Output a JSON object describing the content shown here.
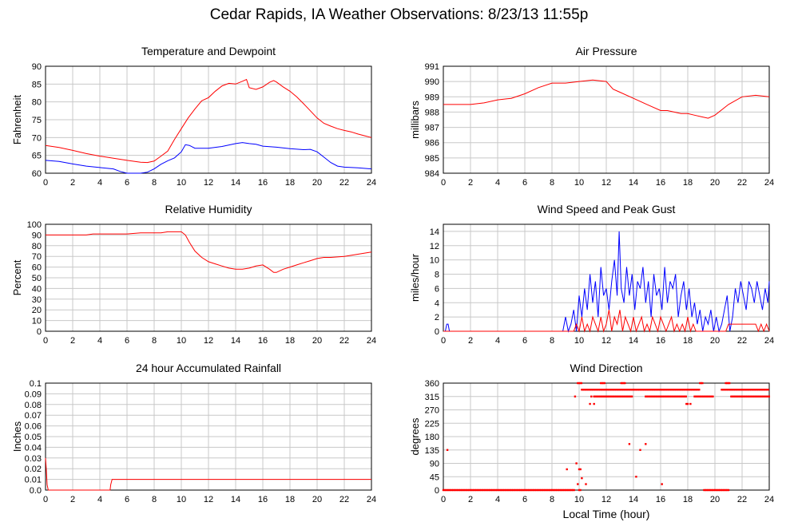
{
  "page": {
    "title": "Cedar Rapids, IA Weather Observations: 8/23/13 11:55p",
    "bottom_xlabel": "Local Time (hour)"
  },
  "colors": {
    "red": "#ff0000",
    "blue": "#0000ff",
    "grid": "#c8c8c8",
    "axis": "#000000"
  },
  "chart_data": [
    {
      "id": "temp",
      "type": "line",
      "title": "Temperature and Dewpoint",
      "ylabel": "Fahrenheit",
      "xlabel": "",
      "xlim": [
        0,
        24
      ],
      "ylim": [
        60,
        90
      ],
      "xticks": [
        0,
        2,
        4,
        6,
        8,
        10,
        12,
        14,
        16,
        18,
        20,
        22,
        24
      ],
      "yticks": [
        60,
        65,
        70,
        75,
        80,
        85,
        90
      ],
      "series": [
        {
          "color": "#ff0000",
          "x": [
            0,
            1,
            2,
            3,
            4,
            5,
            6,
            7,
            7.5,
            8,
            8.5,
            9,
            9.5,
            10,
            10.5,
            11,
            11.5,
            12,
            12.5,
            13,
            13.5,
            14,
            14.5,
            14.8,
            15,
            15.5,
            16,
            16.5,
            16.8,
            17,
            17.5,
            18,
            18.5,
            19,
            19.5,
            20,
            20.5,
            21,
            21.5,
            22,
            22.5,
            23,
            23.5,
            24
          ],
          "y": [
            67.8,
            67.2,
            66.4,
            65.5,
            64.8,
            64.2,
            63.6,
            63.1,
            63.0,
            63.4,
            64.8,
            66.2,
            69.5,
            72.5,
            75.5,
            78.0,
            80.3,
            81.2,
            83.0,
            84.5,
            85.2,
            85.0,
            85.8,
            86.3,
            84.0,
            83.5,
            84.2,
            85.5,
            86.0,
            85.6,
            84.2,
            83.0,
            81.4,
            79.5,
            77.5,
            75.5,
            74.0,
            73.2,
            72.5,
            72.0,
            71.6,
            71.0,
            70.5,
            70.0
          ]
        },
        {
          "color": "#0000ff",
          "x": [
            0,
            1,
            2,
            3,
            4,
            5,
            5.5,
            6,
            7,
            7.5,
            8,
            8.5,
            9,
            9.5,
            10,
            10.3,
            10.6,
            11,
            12,
            13,
            14,
            14.5,
            15,
            15.5,
            16,
            17,
            18,
            19,
            19.5,
            20,
            20.5,
            21,
            21.5,
            22,
            23,
            24
          ],
          "y": [
            63.6,
            63.3,
            62.6,
            62.0,
            61.6,
            61.2,
            60.5,
            60.0,
            60.0,
            60.3,
            61.2,
            62.5,
            63.5,
            64.3,
            66.0,
            68.0,
            67.8,
            67.0,
            67.0,
            67.5,
            68.3,
            68.6,
            68.3,
            68.1,
            67.6,
            67.3,
            66.9,
            66.6,
            66.7,
            66.0,
            64.5,
            63.0,
            62.0,
            61.7,
            61.5,
            61.2
          ]
        }
      ]
    },
    {
      "id": "pres",
      "type": "line",
      "title": "Air Pressure",
      "ylabel": "millibars",
      "xlabel": "",
      "xlim": [
        0,
        24
      ],
      "ylim": [
        984,
        991
      ],
      "xticks": [
        0,
        2,
        4,
        6,
        8,
        10,
        12,
        14,
        16,
        18,
        20,
        22,
        24
      ],
      "yticks": [
        984,
        985,
        986,
        987,
        988,
        989,
        990,
        991
      ],
      "series": [
        {
          "color": "#ff0000",
          "x": [
            0,
            1,
            2,
            3,
            4,
            5,
            6,
            7,
            8,
            9,
            10,
            11,
            12,
            12.5,
            13,
            14,
            15,
            16,
            16.5,
            17,
            17.5,
            18,
            18.5,
            19,
            19.5,
            20,
            21,
            22,
            23,
            24
          ],
          "y": [
            988.5,
            988.5,
            988.5,
            988.6,
            988.8,
            988.9,
            989.2,
            989.6,
            989.9,
            989.9,
            990.0,
            990.1,
            990.0,
            989.5,
            989.3,
            988.9,
            988.5,
            988.1,
            988.1,
            988.0,
            987.9,
            987.9,
            987.8,
            987.7,
            987.6,
            987.8,
            988.5,
            989.0,
            989.1,
            989.0
          ]
        }
      ]
    },
    {
      "id": "rh",
      "type": "line",
      "title": "Relative Humidity",
      "ylabel": "Percent",
      "xlabel": "",
      "xlim": [
        0,
        24
      ],
      "ylim": [
        0,
        100
      ],
      "xticks": [
        0,
        2,
        4,
        6,
        8,
        10,
        12,
        14,
        16,
        18,
        20,
        22,
        24
      ],
      "yticks": [
        0,
        10,
        20,
        30,
        40,
        50,
        60,
        70,
        80,
        90,
        100
      ],
      "series": [
        {
          "color": "#ff0000",
          "x": [
            0,
            1,
            2,
            3,
            3.5,
            4,
            5,
            6,
            7,
            8,
            8.5,
            9,
            9.5,
            10,
            10.3,
            10.6,
            11,
            11.5,
            12,
            12.5,
            13,
            13.5,
            14,
            14.5,
            15,
            15.5,
            16,
            16.5,
            16.8,
            17,
            17.5,
            18,
            18.5,
            19,
            19.5,
            20,
            20.5,
            21,
            22,
            23,
            24
          ],
          "y": [
            90,
            90,
            90,
            90,
            91,
            91,
            91,
            91,
            92,
            92,
            92,
            93,
            93,
            93,
            90,
            83,
            75,
            69,
            65,
            63,
            61,
            59,
            58,
            58,
            59,
            61,
            62,
            58,
            55,
            55,
            58,
            60,
            62,
            64,
            66,
            68,
            69,
            69,
            70,
            72,
            74
          ]
        }
      ]
    },
    {
      "id": "wind",
      "type": "line",
      "title": "Wind Speed and Peak Gust",
      "ylabel": "miles/hour",
      "xlabel": "",
      "xlim": [
        0,
        24
      ],
      "ylim": [
        0,
        15
      ],
      "xticks": [
        0,
        2,
        4,
        6,
        8,
        10,
        12,
        14,
        16,
        18,
        20,
        22,
        24
      ],
      "yticks": [
        0,
        2,
        4,
        6,
        8,
        10,
        12,
        14
      ],
      "series": [
        {
          "color": "#0000ff",
          "x": [
            0,
            0.15,
            0.25,
            0.35,
            0.45,
            0.6,
            1,
            2,
            3,
            4,
            5,
            6,
            7,
            8,
            8.8,
            9.0,
            9.2,
            9.4,
            9.6,
            9.8,
            10.0,
            10.2,
            10.4,
            10.6,
            10.8,
            11.0,
            11.2,
            11.4,
            11.6,
            11.8,
            12.0,
            12.2,
            12.4,
            12.6,
            12.8,
            12.95,
            13.1,
            13.3,
            13.5,
            13.7,
            13.9,
            14.1,
            14.3,
            14.5,
            14.7,
            14.9,
            15.1,
            15.3,
            15.5,
            15.7,
            15.9,
            16.1,
            16.3,
            16.5,
            16.7,
            16.9,
            17.1,
            17.3,
            17.5,
            17.7,
            17.9,
            18.1,
            18.3,
            18.5,
            18.7,
            18.9,
            19.1,
            19.3,
            19.5,
            19.7,
            19.9,
            20.1,
            20.3,
            20.5,
            20.7,
            20.9,
            21.1,
            21.3,
            21.5,
            21.7,
            21.9,
            22.1,
            22.3,
            22.5,
            22.7,
            22.9,
            23.1,
            23.3,
            23.5,
            23.7,
            23.9,
            24
          ],
          "y": [
            0,
            0,
            1,
            1,
            0,
            0,
            0,
            0,
            0,
            0,
            0,
            0,
            0,
            0,
            0,
            2,
            0,
            1,
            3,
            0,
            5,
            2,
            6,
            3,
            8,
            4,
            7,
            2,
            9,
            5,
            6,
            3,
            7,
            10,
            5,
            14,
            6,
            4,
            9,
            5,
            8,
            3,
            7,
            6,
            9,
            4,
            7,
            2,
            8,
            5,
            6,
            3,
            9,
            4,
            7,
            6,
            8,
            2,
            5,
            7,
            3,
            6,
            2,
            4,
            1,
            3,
            0,
            2,
            1,
            3,
            0,
            2,
            0,
            1,
            3,
            5,
            0,
            2,
            6,
            4,
            7,
            5,
            3,
            7,
            6,
            4,
            7,
            5,
            3,
            6,
            4,
            7
          ]
        },
        {
          "color": "#ff0000",
          "x": [
            0,
            8,
            9.2,
            9.6,
            9.8,
            10.0,
            10.2,
            10.4,
            10.6,
            10.8,
            11.0,
            11.2,
            11.4,
            11.6,
            11.8,
            12.0,
            12.2,
            12.4,
            12.6,
            12.8,
            13.0,
            13.2,
            13.4,
            13.6,
            13.8,
            14.0,
            14.2,
            14.4,
            14.6,
            14.8,
            15.0,
            15.2,
            15.4,
            15.6,
            15.8,
            16.0,
            16.2,
            16.4,
            16.6,
            16.8,
            17.0,
            17.2,
            17.4,
            17.6,
            17.8,
            18.0,
            18.2,
            18.4,
            18.6,
            18.8,
            19.0,
            20.0,
            20.8,
            21.0,
            21.5,
            22,
            22.5,
            23,
            23.2,
            23.4,
            23.6,
            23.8,
            24
          ],
          "y": [
            0,
            0,
            0,
            0,
            1,
            0,
            2,
            0,
            1,
            0,
            2,
            1,
            0,
            2,
            0,
            1,
            3,
            0,
            2,
            1,
            3,
            0,
            2,
            1,
            0,
            2,
            0,
            1,
            2,
            0,
            1,
            0,
            2,
            1,
            0,
            2,
            1,
            0,
            1,
            2,
            0,
            1,
            0,
            1,
            0,
            2,
            0,
            1,
            0,
            0,
            0,
            0,
            0,
            1,
            1,
            1,
            1,
            1,
            0,
            1,
            0,
            1,
            0
          ]
        }
      ]
    },
    {
      "id": "rain",
      "type": "line",
      "title": "24 hour Accumulated Rainfall",
      "ylabel": "Inches",
      "xlabel": "",
      "xlim": [
        0,
        24
      ],
      "ylim": [
        0,
        0.1
      ],
      "xticks": [
        0,
        2,
        4,
        6,
        8,
        10,
        12,
        14,
        16,
        18,
        20,
        22,
        24
      ],
      "yticks": [
        "0.0",
        "0.01",
        "0.02",
        "0.03",
        "0.04",
        "0.05",
        "0.06",
        "0.07",
        "0.08",
        "0.09",
        "0.1"
      ],
      "series": [
        {
          "color": "#ff0000",
          "x": [
            0,
            0.05,
            0.12,
            0.2,
            4.75,
            4.8,
            4.9,
            24
          ],
          "y": [
            0.03,
            0.02,
            0.005,
            0,
            0,
            0.005,
            0.01,
            0.01
          ]
        }
      ]
    },
    {
      "id": "dir",
      "type": "scatter",
      "title": "Wind Direction",
      "ylabel": "degrees",
      "xlabel": "Local Time (hour)",
      "xlim": [
        0,
        24
      ],
      "ylim": [
        0,
        360
      ],
      "xticks": [
        0,
        2,
        4,
        6,
        8,
        10,
        12,
        14,
        16,
        18,
        20,
        22,
        24
      ],
      "yticks": [
        0,
        45,
        90,
        135,
        180,
        225,
        270,
        315,
        360
      ],
      "series": [
        {
          "color": "#ff0000",
          "x": [
            0.3,
            9.1,
            9.8,
            9.9,
            10.0,
            10.1,
            10.2,
            10.5,
            10.8,
            13.7,
            14.2,
            14.5,
            14.9,
            16.1,
            9.7,
            10.9,
            11.1,
            17.9,
            18.0,
            18.2
          ],
          "y": [
            135,
            70,
            90,
            20,
            70,
            70,
            40,
            20,
            290,
            155,
            45,
            135,
            155,
            20,
            315,
            315,
            290,
            290,
            290,
            290
          ]
        }
      ],
      "bands": [
        {
          "y": 0,
          "x_ranges": [
            [
              0,
              9.7
            ],
            [
              10.0,
              10.1
            ],
            [
              19.2,
              21.0
            ]
          ]
        },
        {
          "y": 338,
          "x_ranges": [
            [
              10.2,
              18.9
            ],
            [
              20.5,
              24
            ]
          ]
        },
        {
          "y": 315,
          "x_ranges": [
            [
              11.1,
              13.9
            ],
            [
              14.9,
              17.9
            ],
            [
              18.5,
              19.9
            ],
            [
              21.2,
              24
            ]
          ]
        },
        {
          "y": 360,
          "x_ranges": [
            [
              9.9,
              10.2
            ],
            [
              11.6,
              11.9
            ],
            [
              13.1,
              13.4
            ],
            [
              18.9,
              19.1
            ],
            [
              20.8,
              21.1
            ]
          ]
        }
      ]
    }
  ]
}
